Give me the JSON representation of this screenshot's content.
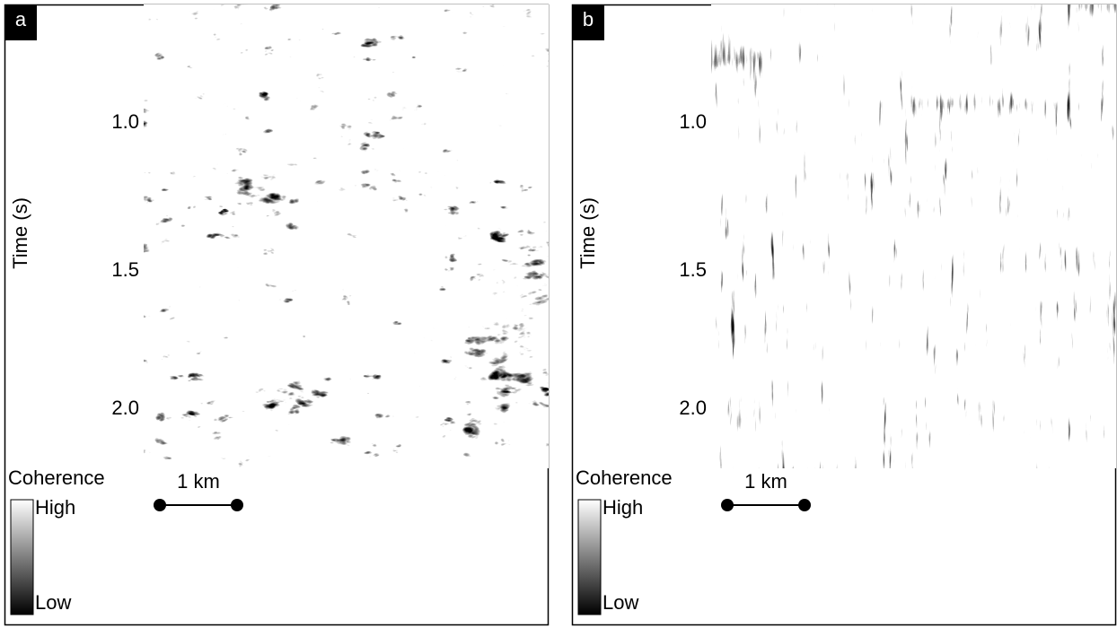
{
  "panels": [
    {
      "label": "a",
      "y_axis": {
        "label": "Time (s)",
        "ticks": [
          "1.0",
          "1.5",
          "2.0"
        ]
      },
      "colorbar": {
        "title": "Coherence",
        "high": "High",
        "low": "Low"
      },
      "scale_bar": "1 km"
    },
    {
      "label": "b",
      "y_axis": {
        "label": "Time (s)",
        "ticks": [
          "1.0",
          "1.5",
          "2.0"
        ]
      },
      "colorbar": {
        "title": "Coherence",
        "high": "High",
        "low": "Low"
      },
      "scale_bar": "1 km"
    }
  ]
}
